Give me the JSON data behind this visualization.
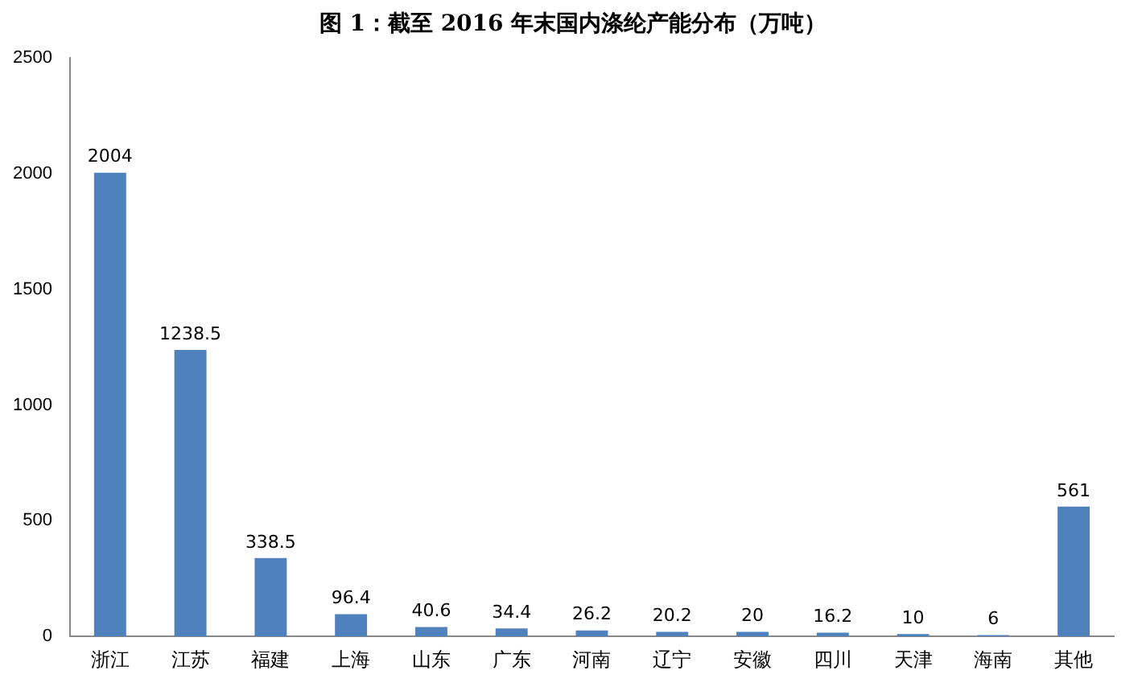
{
  "chart_data": {
    "type": "bar",
    "title": "图 1：截至 2016 年末国内涤纶产能分布（万吨）",
    "categories": [
      "浙江",
      "江苏",
      "福建",
      "上海",
      "山东",
      "广东",
      "河南",
      "辽宁",
      "安徽",
      "四川",
      "天津",
      "海南",
      "其他"
    ],
    "values": [
      2004,
      1238.5,
      338.5,
      96.4,
      40.6,
      34.4,
      26.2,
      20.2,
      20,
      16.2,
      10,
      6,
      561
    ],
    "color": "#4f81bd",
    "ylim": [
      0,
      2500
    ],
    "yticks": [
      0,
      500,
      1000,
      1500,
      2000,
      2500
    ],
    "grid": false,
    "data_labels": true
  }
}
